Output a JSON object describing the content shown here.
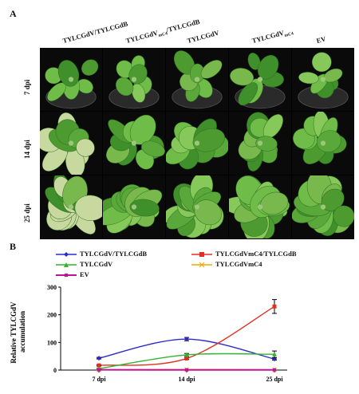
{
  "figure": {
    "panel_a_label": "A",
    "panel_b_label": "B",
    "columns": [
      {
        "label": "TYLCGdV/TYLCGdB",
        "sub": ""
      },
      {
        "label": "TYLCGdV",
        "sub": "mC4",
        "rest": "/TYLCGdB"
      },
      {
        "label": "TYLCGdV",
        "sub": ""
      },
      {
        "label": "TYLCGdV",
        "sub": "mC4"
      },
      {
        "label": "EV",
        "sub": ""
      }
    ],
    "rows": [
      "7 dpi",
      "14 dpi",
      "25 dpi"
    ]
  },
  "chart_data": {
    "type": "line",
    "categories": [
      "7 dpi",
      "14 dpi",
      "25 dpi"
    ],
    "ylabel": "Relative TYLCGdV accumulation",
    "ylim": [
      0,
      300
    ],
    "yticks": [
      0,
      100,
      200,
      300
    ],
    "series": [
      {
        "name": "TYLCGdV/TYLCGdB",
        "color": "#2b2bcc",
        "marker": "diamond",
        "values": [
          43,
          112,
          40
        ],
        "err": [
          3,
          6,
          4
        ]
      },
      {
        "name": "TYLCGdVmC4/TYLCGdB",
        "color": "#e03020",
        "marker": "square",
        "values": [
          17,
          42,
          230
        ],
        "err": [
          2,
          3,
          25
        ]
      },
      {
        "name": "TYLCGdV",
        "color": "#2fb52f",
        "marker": "triangle",
        "values": [
          5,
          55,
          57
        ],
        "err": [
          1,
          5,
          12
        ]
      },
      {
        "name": "TYLCGdVmC4",
        "color": "#f0a800",
        "marker": "cross",
        "values": [
          1,
          2,
          1
        ],
        "err": [
          0,
          0,
          0
        ]
      },
      {
        "name": "EV",
        "color": "#c0139a",
        "marker": "star",
        "values": [
          1,
          1,
          1
        ],
        "err": [
          0,
          0,
          0
        ]
      }
    ]
  }
}
